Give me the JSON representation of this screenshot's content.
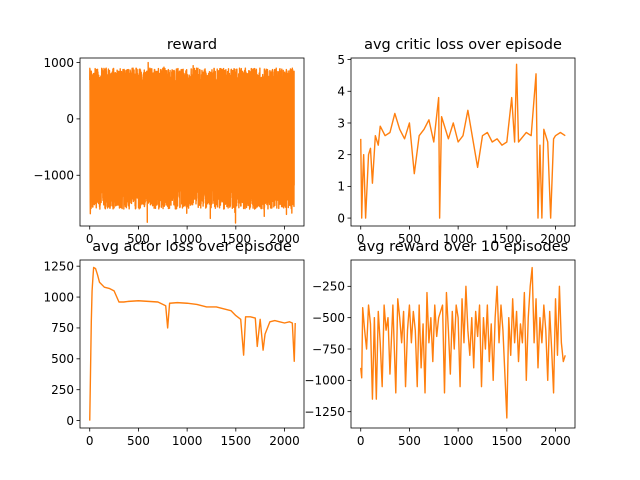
{
  "chart_data": [
    {
      "type": "line",
      "title": "reward",
      "xlim": [
        -100,
        2200
      ],
      "ylim": [
        -1900,
        1080
      ],
      "xticks": [
        0,
        500,
        1000,
        1500,
        2000
      ],
      "yticks": [
        -1000,
        0,
        1000
      ],
      "series": [
        {
          "color": "#ff7f0e",
          "dense": true,
          "n": 2100,
          "min": -1850,
          "max": 1000,
          "low_band": [
            -1600,
            -1150
          ],
          "high_band": [
            600,
            900
          ]
        }
      ]
    },
    {
      "type": "line",
      "title": "avg critic loss over episode",
      "xlim": [
        -100,
        2200
      ],
      "ylim": [
        -0.25,
        5.05
      ],
      "xticks": [
        0,
        500,
        1000,
        1500,
        2000
      ],
      "yticks": [
        0,
        1,
        2,
        3,
        4,
        5
      ],
      "series": [
        {
          "color": "#ff7f0e",
          "points": [
            [
              0,
              2.5
            ],
            [
              10,
              0.0
            ],
            [
              20,
              1.2
            ],
            [
              30,
              2.0
            ],
            [
              50,
              0.0
            ],
            [
              80,
              2.0
            ],
            [
              100,
              2.2
            ],
            [
              120,
              1.1
            ],
            [
              150,
              2.6
            ],
            [
              180,
              2.3
            ],
            [
              200,
              2.9
            ],
            [
              250,
              2.6
            ],
            [
              300,
              2.7
            ],
            [
              350,
              3.3
            ],
            [
              400,
              2.8
            ],
            [
              450,
              2.5
            ],
            [
              500,
              3.0
            ],
            [
              550,
              1.4
            ],
            [
              600,
              2.6
            ],
            [
              650,
              2.8
            ],
            [
              700,
              3.1
            ],
            [
              750,
              2.4
            ],
            [
              800,
              3.8
            ],
            [
              810,
              0.0
            ],
            [
              830,
              3.2
            ],
            [
              900,
              2.5
            ],
            [
              950,
              3.0
            ],
            [
              1000,
              2.4
            ],
            [
              1050,
              2.6
            ],
            [
              1100,
              3.4
            ],
            [
              1150,
              2.5
            ],
            [
              1200,
              1.6
            ],
            [
              1250,
              2.6
            ],
            [
              1300,
              2.7
            ],
            [
              1350,
              2.4
            ],
            [
              1400,
              2.5
            ],
            [
              1450,
              2.3
            ],
            [
              1500,
              2.4
            ],
            [
              1550,
              3.8
            ],
            [
              1580,
              2.4
            ],
            [
              1600,
              4.85
            ],
            [
              1620,
              2.4
            ],
            [
              1700,
              2.7
            ],
            [
              1750,
              2.6
            ],
            [
              1800,
              4.55
            ],
            [
              1820,
              0.0
            ],
            [
              1840,
              2.3
            ],
            [
              1860,
              0.0
            ],
            [
              1880,
              2.8
            ],
            [
              1920,
              2.4
            ],
            [
              1950,
              0.0
            ],
            [
              1980,
              2.5
            ],
            [
              2000,
              2.6
            ],
            [
              2050,
              2.7
            ],
            [
              2100,
              2.6
            ]
          ]
        }
      ]
    },
    {
      "type": "line",
      "title": "avg actor loss over episode",
      "xlim": [
        -100,
        2200
      ],
      "ylim": [
        -60,
        1300
      ],
      "xticks": [
        0,
        500,
        1000,
        1500,
        2000
      ],
      "yticks": [
        0,
        250,
        500,
        750,
        1000,
        1250
      ],
      "series": [
        {
          "color": "#ff7f0e",
          "points": [
            [
              0,
              0
            ],
            [
              8,
              400
            ],
            [
              16,
              800
            ],
            [
              24,
              1050
            ],
            [
              32,
              1150
            ],
            [
              40,
              1240
            ],
            [
              60,
              1230
            ],
            [
              80,
              1180
            ],
            [
              100,
              1120
            ],
            [
              150,
              1080
            ],
            [
              200,
              1070
            ],
            [
              250,
              1050
            ],
            [
              300,
              960
            ],
            [
              350,
              960
            ],
            [
              400,
              965
            ],
            [
              500,
              970
            ],
            [
              600,
              965
            ],
            [
              700,
              960
            ],
            [
              780,
              930
            ],
            [
              800,
              750
            ],
            [
              820,
              950
            ],
            [
              900,
              955
            ],
            [
              1000,
              950
            ],
            [
              1100,
              940
            ],
            [
              1200,
              920
            ],
            [
              1300,
              920
            ],
            [
              1400,
              900
            ],
            [
              1450,
              890
            ],
            [
              1500,
              850
            ],
            [
              1550,
              820
            ],
            [
              1580,
              530
            ],
            [
              1600,
              840
            ],
            [
              1650,
              840
            ],
            [
              1700,
              830
            ],
            [
              1720,
              600
            ],
            [
              1750,
              820
            ],
            [
              1780,
              570
            ],
            [
              1800,
              700
            ],
            [
              1850,
              800
            ],
            [
              1900,
              810
            ],
            [
              1950,
              800
            ],
            [
              2000,
              790
            ],
            [
              2050,
              800
            ],
            [
              2080,
              790
            ],
            [
              2100,
              480
            ],
            [
              2110,
              790
            ]
          ]
        }
      ]
    },
    {
      "type": "line",
      "title": "avg reward over 10 episodes",
      "xlim": [
        -100,
        2200
      ],
      "ylim": [
        -1380,
        -40
      ],
      "xticks": [
        0,
        500,
        1000,
        1500,
        2000
      ],
      "yticks": [
        -1250,
        -1000,
        -750,
        -500,
        -250
      ],
      "series": [
        {
          "color": "#ff7f0e",
          "points": [
            [
              0,
              -900
            ],
            [
              10,
              -980
            ],
            [
              20,
              -420
            ],
            [
              40,
              -600
            ],
            [
              60,
              -750
            ],
            [
              80,
              -400
            ],
            [
              100,
              -550
            ],
            [
              120,
              -1150
            ],
            [
              140,
              -500
            ],
            [
              160,
              -1150
            ],
            [
              180,
              -450
            ],
            [
              200,
              -700
            ],
            [
              220,
              -1050
            ],
            [
              240,
              -400
            ],
            [
              260,
              -600
            ],
            [
              280,
              -500
            ],
            [
              300,
              -950
            ],
            [
              330,
              -400
            ],
            [
              360,
              -1100
            ],
            [
              380,
              -350
            ],
            [
              400,
              -500
            ],
            [
              420,
              -700
            ],
            [
              440,
              -450
            ],
            [
              460,
              -1050
            ],
            [
              480,
              -600
            ],
            [
              500,
              -400
            ],
            [
              520,
              -700
            ],
            [
              540,
              -450
            ],
            [
              560,
              -600
            ],
            [
              580,
              -1050
            ],
            [
              600,
              -400
            ],
            [
              620,
              -900
            ],
            [
              640,
              -550
            ],
            [
              660,
              -1100
            ],
            [
              680,
              -300
            ],
            [
              700,
              -700
            ],
            [
              720,
              -500
            ],
            [
              740,
              -850
            ],
            [
              760,
              -400
            ],
            [
              780,
              -650
            ],
            [
              800,
              -500
            ],
            [
              820,
              -450
            ],
            [
              840,
              -400
            ],
            [
              860,
              -1100
            ],
            [
              880,
              -300
            ],
            [
              900,
              -600
            ],
            [
              920,
              -950
            ],
            [
              940,
              -450
            ],
            [
              960,
              -750
            ],
            [
              980,
              -400
            ],
            [
              1000,
              -500
            ],
            [
              1020,
              -1050
            ],
            [
              1040,
              -350
            ],
            [
              1060,
              -700
            ],
            [
              1080,
              -250
            ],
            [
              1100,
              -600
            ],
            [
              1120,
              -800
            ],
            [
              1140,
              -500
            ],
            [
              1160,
              -900
            ],
            [
              1180,
              -450
            ],
            [
              1200,
              -650
            ],
            [
              1220,
              -400
            ],
            [
              1240,
              -1050
            ],
            [
              1260,
              -500
            ],
            [
              1280,
              -750
            ],
            [
              1300,
              -400
            ],
            [
              1320,
              -850
            ],
            [
              1340,
              -550
            ],
            [
              1360,
              -1000
            ],
            [
              1380,
              -500
            ],
            [
              1400,
              -250
            ],
            [
              1420,
              -700
            ],
            [
              1440,
              -400
            ],
            [
              1460,
              -600
            ],
            [
              1480,
              -950
            ],
            [
              1500,
              -1300
            ],
            [
              1520,
              -500
            ],
            [
              1540,
              -800
            ],
            [
              1560,
              -350
            ],
            [
              1580,
              -700
            ],
            [
              1600,
              -450
            ],
            [
              1620,
              -850
            ],
            [
              1640,
              -550
            ],
            [
              1660,
              -700
            ],
            [
              1680,
              -300
            ],
            [
              1700,
              -1000
            ],
            [
              1720,
              -500
            ],
            [
              1740,
              -250
            ],
            [
              1760,
              -100
            ],
            [
              1780,
              -700
            ],
            [
              1800,
              -350
            ],
            [
              1820,
              -900
            ],
            [
              1840,
              -500
            ],
            [
              1860,
              -700
            ],
            [
              1880,
              -400
            ],
            [
              1900,
              -600
            ],
            [
              1920,
              -1000
            ],
            [
              1940,
              -450
            ],
            [
              1960,
              -750
            ],
            [
              1980,
              -1100
            ],
            [
              2000,
              -350
            ],
            [
              2020,
              -800
            ],
            [
              2040,
              -250
            ],
            [
              2060,
              -700
            ],
            [
              2080,
              -850
            ],
            [
              2100,
              -800
            ]
          ]
        }
      ]
    }
  ]
}
